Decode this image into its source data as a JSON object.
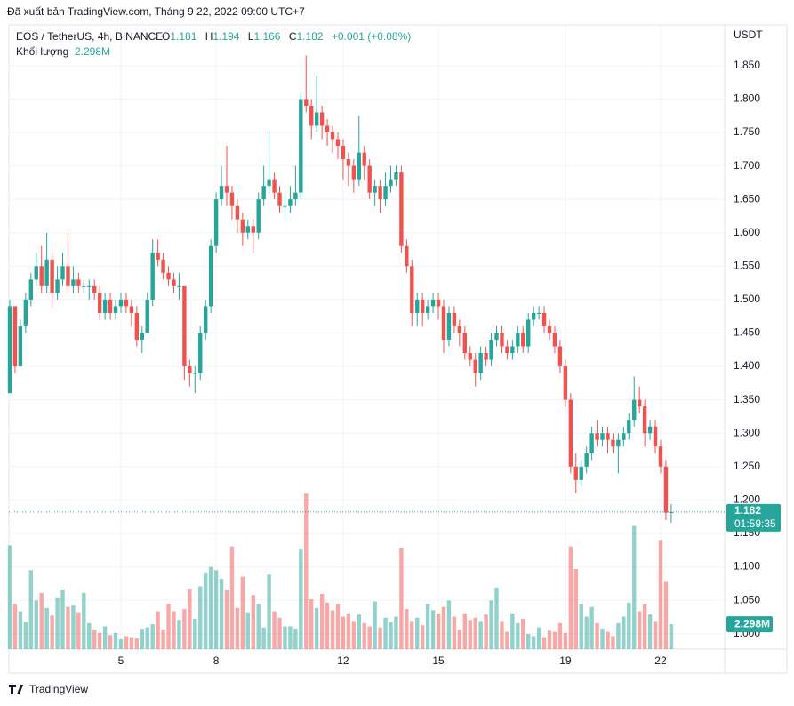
{
  "header": "Đã xuất bản TradingView.com, Tháng 9 22, 2022 09:00 UTC+7",
  "footer": "TradingView",
  "chart_data": {
    "type": "candlestick",
    "symbol": "EOS / TetherUS, 4h, BINANCE",
    "ohlc_letters": [
      "O",
      "H",
      "L",
      "C"
    ],
    "change": "+0.001 (+0.08%)",
    "volume_title": "Khối lượng",
    "volume_label": "2.298M",
    "currency": "USDT",
    "countdown": "01:59:35",
    "up_color": "#26a69a",
    "down_color": "#ef5350",
    "grid": true,
    "xlim": [
      -0.168,
      135.1
    ],
    "xticks": [
      {
        "value": 21,
        "label": "5"
      },
      {
        "value": 39,
        "label": "8"
      },
      {
        "value": 63,
        "label": "12"
      },
      {
        "value": 81,
        "label": "15"
      },
      {
        "value": 105,
        "label": "19"
      },
      {
        "value": 123,
        "label": "22"
      }
    ],
    "ylim": [
      0.977,
      1.911
    ],
    "yticks": [
      {
        "value": 1.0,
        "label": "1.000"
      },
      {
        "value": 1.05,
        "label": "1.050"
      },
      {
        "value": 1.1,
        "label": "1.100"
      },
      {
        "value": 1.15,
        "label": "1.150"
      },
      {
        "value": 1.2,
        "label": "1.200"
      },
      {
        "value": 1.25,
        "label": "1.250"
      },
      {
        "value": 1.3,
        "label": "1.300"
      },
      {
        "value": 1.35,
        "label": "1.350"
      },
      {
        "value": 1.4,
        "label": "1.400"
      },
      {
        "value": 1.45,
        "label": "1.450"
      },
      {
        "value": 1.5,
        "label": "1.500"
      },
      {
        "value": 1.55,
        "label": "1.550"
      },
      {
        "value": 1.6,
        "label": "1.600"
      },
      {
        "value": 1.65,
        "label": "1.650"
      },
      {
        "value": 1.7,
        "label": "1.700"
      },
      {
        "value": 1.75,
        "label": "1.750"
      },
      {
        "value": 1.8,
        "label": "1.800"
      },
      {
        "value": 1.85,
        "label": "1.850"
      }
    ],
    "y2lim": [
      0,
      57.8
    ],
    "ohlc": [
      [
        1.36,
        1.5,
        1.36,
        1.49
      ],
      [
        1.49,
        1.49,
        1.39,
        1.4
      ],
      [
        1.4,
        1.47,
        1.4,
        1.46
      ],
      [
        1.46,
        1.51,
        1.45,
        1.5
      ],
      [
        1.5,
        1.54,
        1.49,
        1.53
      ],
      [
        1.53,
        1.57,
        1.52,
        1.55
      ],
      [
        1.55,
        1.58,
        1.51,
        1.52
      ],
      [
        1.52,
        1.6,
        1.51,
        1.56
      ],
      [
        1.56,
        1.57,
        1.49,
        1.51
      ],
      [
        1.51,
        1.55,
        1.5,
        1.53
      ],
      [
        1.53,
        1.57,
        1.52,
        1.55
      ],
      [
        1.55,
        1.6,
        1.51,
        1.52
      ],
      [
        1.52,
        1.55,
        1.51,
        1.53
      ],
      [
        1.53,
        1.54,
        1.51,
        1.52
      ],
      [
        1.52,
        1.53,
        1.51,
        1.52
      ],
      [
        1.52,
        1.53,
        1.5,
        1.52
      ],
      [
        1.52,
        1.53,
        1.5,
        1.51
      ],
      [
        1.51,
        1.52,
        1.47,
        1.48
      ],
      [
        1.48,
        1.51,
        1.47,
        1.5
      ],
      [
        1.5,
        1.51,
        1.47,
        1.48
      ],
      [
        1.48,
        1.5,
        1.47,
        1.49
      ],
      [
        1.49,
        1.51,
        1.48,
        1.5
      ],
      [
        1.5,
        1.51,
        1.48,
        1.49
      ],
      [
        1.49,
        1.5,
        1.46,
        1.48
      ],
      [
        1.48,
        1.49,
        1.43,
        1.44
      ],
      [
        1.44,
        1.46,
        1.42,
        1.45
      ],
      [
        1.45,
        1.51,
        1.45,
        1.5
      ],
      [
        1.5,
        1.59,
        1.49,
        1.57
      ],
      [
        1.57,
        1.59,
        1.55,
        1.56
      ],
      [
        1.56,
        1.57,
        1.53,
        1.54
      ],
      [
        1.54,
        1.55,
        1.52,
        1.53
      ],
      [
        1.53,
        1.54,
        1.51,
        1.52
      ],
      [
        1.52,
        1.54,
        1.5,
        1.52
      ],
      [
        1.52,
        1.52,
        1.38,
        1.4
      ],
      [
        1.4,
        1.41,
        1.37,
        1.39
      ],
      [
        1.39,
        1.4,
        1.36,
        1.39
      ],
      [
        1.39,
        1.46,
        1.38,
        1.45
      ],
      [
        1.45,
        1.5,
        1.44,
        1.49
      ],
      [
        1.49,
        1.59,
        1.48,
        1.58
      ],
      [
        1.58,
        1.66,
        1.57,
        1.65
      ],
      [
        1.65,
        1.7,
        1.64,
        1.67
      ],
      [
        1.67,
        1.73,
        1.64,
        1.66
      ],
      [
        1.66,
        1.67,
        1.62,
        1.64
      ],
      [
        1.64,
        1.65,
        1.6,
        1.62
      ],
      [
        1.62,
        1.63,
        1.58,
        1.6
      ],
      [
        1.6,
        1.62,
        1.59,
        1.61
      ],
      [
        1.61,
        1.62,
        1.57,
        1.6
      ],
      [
        1.6,
        1.66,
        1.59,
        1.65
      ],
      [
        1.65,
        1.7,
        1.64,
        1.67
      ],
      [
        1.67,
        1.75,
        1.66,
        1.68
      ],
      [
        1.68,
        1.69,
        1.65,
        1.66
      ],
      [
        1.66,
        1.67,
        1.63,
        1.64
      ],
      [
        1.64,
        1.66,
        1.62,
        1.64
      ],
      [
        1.64,
        1.67,
        1.63,
        1.65
      ],
      [
        1.65,
        1.7,
        1.64,
        1.66
      ],
      [
        1.66,
        1.81,
        1.65,
        1.8
      ],
      [
        1.8,
        1.865,
        1.78,
        1.79
      ],
      [
        1.79,
        1.8,
        1.74,
        1.76
      ],
      [
        1.76,
        1.835,
        1.75,
        1.78
      ],
      [
        1.78,
        1.79,
        1.74,
        1.76
      ],
      [
        1.76,
        1.77,
        1.73,
        1.75
      ],
      [
        1.75,
        1.76,
        1.72,
        1.74
      ],
      [
        1.74,
        1.75,
        1.71,
        1.73
      ],
      [
        1.73,
        1.74,
        1.68,
        1.71
      ],
      [
        1.71,
        1.72,
        1.67,
        1.7
      ],
      [
        1.7,
        1.71,
        1.66,
        1.68
      ],
      [
        1.68,
        1.775,
        1.67,
        1.72
      ],
      [
        1.72,
        1.73,
        1.68,
        1.7
      ],
      [
        1.7,
        1.71,
        1.65,
        1.66
      ],
      [
        1.66,
        1.68,
        1.64,
        1.67
      ],
      [
        1.67,
        1.68,
        1.63,
        1.65
      ],
      [
        1.65,
        1.69,
        1.64,
        1.67
      ],
      [
        1.67,
        1.7,
        1.66,
        1.68
      ],
      [
        1.68,
        1.7,
        1.67,
        1.69
      ],
      [
        1.69,
        1.7,
        1.57,
        1.58
      ],
      [
        1.58,
        1.59,
        1.54,
        1.55
      ],
      [
        1.55,
        1.56,
        1.46,
        1.48
      ],
      [
        1.48,
        1.51,
        1.46,
        1.5
      ],
      [
        1.5,
        1.51,
        1.46,
        1.48
      ],
      [
        1.48,
        1.5,
        1.47,
        1.49
      ],
      [
        1.49,
        1.51,
        1.48,
        1.5
      ],
      [
        1.5,
        1.51,
        1.47,
        1.49
      ],
      [
        1.49,
        1.5,
        1.42,
        1.44
      ],
      [
        1.44,
        1.49,
        1.43,
        1.48
      ],
      [
        1.48,
        1.49,
        1.45,
        1.46
      ],
      [
        1.46,
        1.47,
        1.43,
        1.45
      ],
      [
        1.45,
        1.46,
        1.41,
        1.42
      ],
      [
        1.42,
        1.43,
        1.4,
        1.41
      ],
      [
        1.41,
        1.42,
        1.37,
        1.39
      ],
      [
        1.39,
        1.43,
        1.38,
        1.42
      ],
      [
        1.42,
        1.43,
        1.4,
        1.41
      ],
      [
        1.41,
        1.45,
        1.4,
        1.44
      ],
      [
        1.44,
        1.46,
        1.43,
        1.45
      ],
      [
        1.45,
        1.46,
        1.42,
        1.43
      ],
      [
        1.43,
        1.44,
        1.41,
        1.42
      ],
      [
        1.42,
        1.44,
        1.41,
        1.43
      ],
      [
        1.43,
        1.46,
        1.42,
        1.45
      ],
      [
        1.45,
        1.46,
        1.42,
        1.43
      ],
      [
        1.43,
        1.48,
        1.42,
        1.47
      ],
      [
        1.47,
        1.49,
        1.46,
        1.48
      ],
      [
        1.48,
        1.49,
        1.47,
        1.48
      ],
      [
        1.48,
        1.49,
        1.45,
        1.46
      ],
      [
        1.46,
        1.47,
        1.44,
        1.45
      ],
      [
        1.45,
        1.46,
        1.42,
        1.43
      ],
      [
        1.43,
        1.44,
        1.39,
        1.4
      ],
      [
        1.4,
        1.41,
        1.34,
        1.35
      ],
      [
        1.35,
        1.36,
        1.24,
        1.25
      ],
      [
        1.25,
        1.27,
        1.21,
        1.23
      ],
      [
        1.23,
        1.26,
        1.22,
        1.25
      ],
      [
        1.25,
        1.28,
        1.24,
        1.27
      ],
      [
        1.27,
        1.31,
        1.26,
        1.3
      ],
      [
        1.3,
        1.32,
        1.28,
        1.29
      ],
      [
        1.29,
        1.31,
        1.28,
        1.3
      ],
      [
        1.3,
        1.31,
        1.27,
        1.29
      ],
      [
        1.29,
        1.3,
        1.27,
        1.28
      ],
      [
        1.28,
        1.3,
        1.24,
        1.29
      ],
      [
        1.29,
        1.31,
        1.28,
        1.3
      ],
      [
        1.3,
        1.33,
        1.29,
        1.32
      ],
      [
        1.32,
        1.385,
        1.31,
        1.35
      ],
      [
        1.35,
        1.37,
        1.33,
        1.34
      ],
      [
        1.34,
        1.35,
        1.28,
        1.3
      ],
      [
        1.3,
        1.32,
        1.29,
        1.31
      ],
      [
        1.31,
        1.32,
        1.27,
        1.28
      ],
      [
        1.28,
        1.29,
        1.24,
        1.25
      ],
      [
        1.25,
        1.26,
        1.17,
        1.181
      ],
      [
        1.181,
        1.194,
        1.166,
        1.182
      ]
    ],
    "volume": [
      9.6,
      4.2,
      3.5,
      2.5,
      7.3,
      4.5,
      5.2,
      3.8,
      3.1,
      4.8,
      5.5,
      3.9,
      4.1,
      3.4,
      5.2,
      2.4,
      1.8,
      1.5,
      2.1,
      1.3,
      1.5,
      0.9,
      1.2,
      1.1,
      1.0,
      1.9,
      2.0,
      2.3,
      3.5,
      1.8,
      4.2,
      3.5,
      2.7,
      3.7,
      5.6,
      2.8,
      5.8,
      7.1,
      7.6,
      7.3,
      6.5,
      5.5,
      9.5,
      3.8,
      6.7,
      3.4,
      5.0,
      4.2,
      2.0,
      6.9,
      3.5,
      2.9,
      2.1,
      2.1,
      1.9,
      9.3,
      14.4,
      4.6,
      3.8,
      5.1,
      4.3,
      3.6,
      4.2,
      3.0,
      3.3,
      2.6,
      3.2,
      2.4,
      2.1,
      4.4,
      2.0,
      2.9,
      2.5,
      3.0,
      9.4,
      3.7,
      2.6,
      2.9,
      2.2,
      4.2,
      3.6,
      3.3,
      3.9,
      4.5,
      3.0,
      1.8,
      3.3,
      2.7,
      2.9,
      2.6,
      3.2,
      4.5,
      5.7,
      2.6,
      1.6,
      3.3,
      2.4,
      2.8,
      1.4,
      1.2,
      2.0,
      1.1,
      1.7,
      1.6,
      2.4,
      1.5,
      9.5,
      7.4,
      4.2,
      3.0,
      3.9,
      2.4,
      1.9,
      1.6,
      1.2,
      2.4,
      3.0,
      4.3,
      11.4,
      3.5,
      4.2,
      3.2,
      2.6,
      10.1,
      6.3,
      2.298
    ]
  }
}
